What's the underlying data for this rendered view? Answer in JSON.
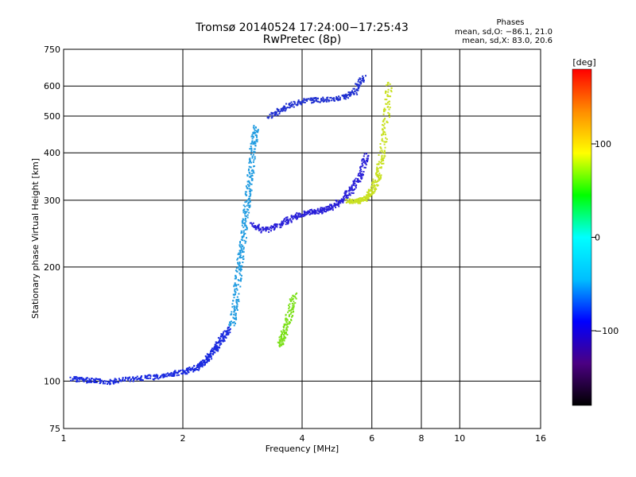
{
  "chart_data": {
    "type": "scatter",
    "title": "Tromsø 20140524 17:24:00−17:25:43",
    "subtitle": "RwPretec (8p)",
    "xlabel": "Frequency [MHz]",
    "ylabel": "Stationary phase Virtual Height [km]",
    "x_scale": "log",
    "y_scale": "log",
    "xlim": [
      1,
      16
    ],
    "ylim": [
      75,
      750
    ],
    "x_ticks": [
      1,
      2,
      4,
      6,
      8,
      10,
      16
    ],
    "x_tick_labels": [
      "1",
      "2",
      "4",
      "6",
      "8",
      "10",
      "16"
    ],
    "y_ticks": [
      75,
      100,
      200,
      300,
      400,
      500,
      600,
      750
    ],
    "y_tick_labels": [
      "75",
      "100",
      "200",
      "300",
      "400",
      "500",
      "600",
      "750"
    ],
    "grid": true,
    "legend": {
      "title": "Phases",
      "lines": [
        "mean, sd,O: −86.1, 21.0",
        "mean, sd,X:  83.0, 20.6"
      ],
      "placement": "top-right"
    },
    "colorbar": {
      "title": "[deg]",
      "range": [
        -180,
        180
      ],
      "ticks": [
        100,
        0,
        -100
      ],
      "tick_labels": [
        "100",
        "0",
        "−100"
      ],
      "colors": [
        "#000000",
        "#4b0082",
        "#0000ff",
        "#00bfff",
        "#00ffff",
        "#00ff00",
        "#ffff00",
        "#ff8c00",
        "#ff0000"
      ]
    },
    "traces": [
      {
        "desc": "blue lower branch",
        "color": "#1a2adf",
        "x": [
          1.05,
          1.15,
          1.3,
          1.5,
          1.7,
          1.9,
          2.05,
          2.2,
          2.3,
          2.4,
          2.5,
          2.6
        ],
        "y": [
          102,
          101,
          100,
          102,
          103,
          105,
          107,
          110,
          115,
          122,
          130,
          138
        ]
      },
      {
        "desc": "cyan column near 2.7-3.0 MHz",
        "color": "#1f9be0",
        "x": [
          2.65,
          2.7,
          2.75,
          2.8,
          2.85,
          2.9,
          2.95,
          3.0,
          3.05
        ],
        "y": [
          140,
          160,
          190,
          220,
          260,
          300,
          350,
          420,
          470
        ]
      },
      {
        "desc": "O-mode F trace",
        "color": "#2a20d8",
        "x": [
          3.0,
          3.2,
          3.5,
          3.8,
          4.1,
          4.4,
          4.7,
          5.0,
          5.3,
          5.6,
          5.8
        ],
        "y": [
          260,
          250,
          260,
          272,
          280,
          282,
          288,
          300,
          320,
          350,
          400
        ]
      },
      {
        "desc": "X-mode yellow trace",
        "color": "#c8e020",
        "x": [
          5.2,
          5.5,
          5.8,
          6.0,
          6.2,
          6.35,
          6.5,
          6.6
        ],
        "y": [
          300,
          300,
          305,
          320,
          350,
          400,
          500,
          620
        ]
      },
      {
        "desc": "green cluster",
        "color": "#7ce01a",
        "x": [
          3.5,
          3.6,
          3.7,
          3.8
        ],
        "y": [
          125,
          135,
          150,
          170
        ]
      },
      {
        "desc": "upper blue echoes",
        "color": "#2030d0",
        "x": [
          3.3,
          3.6,
          4.0,
          4.5,
          5.0,
          5.4,
          5.7
        ],
        "y": [
          500,
          530,
          550,
          555,
          560,
          580,
          640
        ]
      }
    ]
  }
}
